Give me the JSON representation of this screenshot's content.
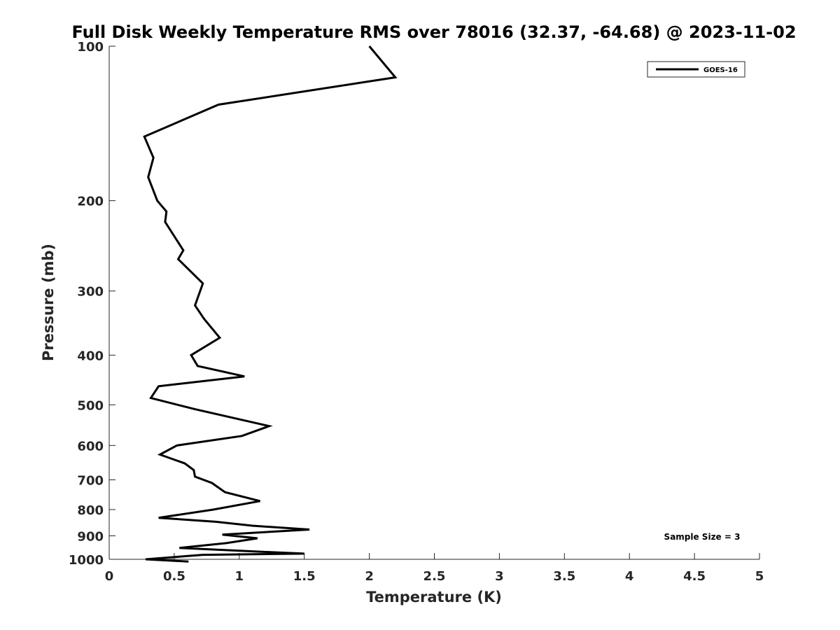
{
  "chart_data": {
    "type": "line",
    "title": "Full Disk Weekly Temperature RMS over 78016 (32.37, -64.68) @ 2023-11-02",
    "xlabel": "Temperature (K)",
    "ylabel": "Pressure (mb)",
    "xlim": [
      0,
      5
    ],
    "ylim": [
      1000,
      100
    ],
    "y_scale": "log",
    "y_reversed": true,
    "x_ticks": [
      "0",
      "0.5",
      "1",
      "1.5",
      "2",
      "2.5",
      "3",
      "3.5",
      "4",
      "4.5",
      "5"
    ],
    "y_ticks": [
      "100",
      "200",
      "300",
      "400",
      "500",
      "600",
      "700",
      "800",
      "900",
      "1000"
    ],
    "grid": false,
    "legend": {
      "position": "top-right",
      "entries": [
        "GOES-16"
      ]
    },
    "annotation": "Sample Size = 3",
    "series": [
      {
        "name": "GOES-16",
        "color": "#000000",
        "x": [
          2.0,
          2.2,
          0.84,
          0.27,
          0.34,
          0.3,
          0.37,
          0.44,
          0.43,
          0.57,
          0.53,
          0.72,
          0.66,
          0.73,
          0.85,
          0.63,
          0.68,
          1.04,
          0.38,
          0.32,
          0.66,
          1.23,
          1.02,
          0.52,
          0.39,
          0.58,
          0.65,
          0.66,
          0.79,
          0.89,
          1.16,
          0.8,
          0.38,
          0.82,
          1.1,
          1.54,
          0.87,
          1.14,
          0.9,
          0.54,
          1.3,
          1.5,
          0.72,
          0.28,
          0.61
        ],
        "y": [
          100,
          115,
          130,
          150,
          165,
          180,
          200,
          210,
          220,
          250,
          260,
          290,
          320,
          340,
          370,
          400,
          420,
          440,
          460,
          485,
          510,
          550,
          575,
          600,
          625,
          650,
          670,
          690,
          710,
          740,
          770,
          800,
          830,
          845,
          860,
          875,
          895,
          910,
          930,
          950,
          970,
          975,
          980,
          1000,
          1010
        ]
      }
    ]
  }
}
